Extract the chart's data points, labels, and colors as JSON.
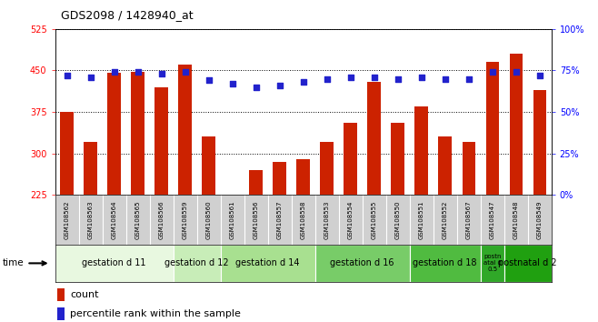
{
  "title": "GDS2098 / 1428940_at",
  "samples": [
    "GSM108562",
    "GSM108563",
    "GSM108564",
    "GSM108565",
    "GSM108566",
    "GSM108559",
    "GSM108560",
    "GSM108561",
    "GSM108556",
    "GSM108557",
    "GSM108558",
    "GSM108553",
    "GSM108554",
    "GSM108555",
    "GSM108550",
    "GSM108551",
    "GSM108552",
    "GSM108567",
    "GSM108547",
    "GSM108548",
    "GSM108549"
  ],
  "counts": [
    375,
    320,
    445,
    447,
    420,
    460,
    330,
    225,
    270,
    285,
    290,
    320,
    355,
    430,
    355,
    385,
    330,
    320,
    465,
    480,
    415
  ],
  "percentiles": [
    72,
    71,
    74,
    74,
    73,
    74,
    69,
    67,
    65,
    66,
    68,
    70,
    71,
    71,
    70,
    71,
    70,
    70,
    74,
    74,
    72
  ],
  "groups": [
    {
      "label": "gestation d 11",
      "start": 0,
      "end": 5,
      "color": "#e8f8e0"
    },
    {
      "label": "gestation d 12",
      "start": 5,
      "end": 7,
      "color": "#c8edb8"
    },
    {
      "label": "gestation d 14",
      "start": 7,
      "end": 11,
      "color": "#a8e090"
    },
    {
      "label": "gestation d 16",
      "start": 11,
      "end": 15,
      "color": "#78cc68"
    },
    {
      "label": "gestation d 18",
      "start": 15,
      "end": 18,
      "color": "#50bb40"
    },
    {
      "label": "postn\natal d\n0.5",
      "start": 18,
      "end": 19,
      "color": "#30a828"
    },
    {
      "label": "postnatal d 2",
      "start": 19,
      "end": 21,
      "color": "#20a010"
    }
  ],
  "ylim_left": [
    225,
    525
  ],
  "ylim_right": [
    0,
    100
  ],
  "yticks_left": [
    225,
    300,
    375,
    450,
    525
  ],
  "yticks_right": [
    0,
    25,
    50,
    75,
    100
  ],
  "bar_color": "#cc2200",
  "dot_color": "#2222cc",
  "bg_color": "#d0d0d0",
  "legend_count_label": "count",
  "legend_pct_label": "percentile rank within the sample"
}
